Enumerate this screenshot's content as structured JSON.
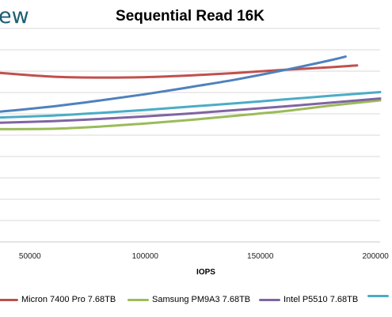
{
  "logo_text": "ew",
  "chart_data": {
    "type": "line",
    "title": "Sequential Read 16K",
    "xlabel": "IOPS",
    "ylabel": "",
    "x_ticks": [
      "50000",
      "100000",
      "150000",
      "200000"
    ],
    "x_tick_values": [
      50000,
      100000,
      150000,
      200000
    ],
    "xlim": [
      37000,
      202000
    ],
    "ylim": [
      0,
      10
    ],
    "grid": "horizontal",
    "legend_position": "bottom",
    "series": [
      {
        "name": "Micron 7400 Pro 7.68TB",
        "color": "#c0504d",
        "x": [
          37000,
          60000,
          80000,
          100000,
          120000,
          140000,
          160000,
          180000,
          192000
        ],
        "y": [
          7.92,
          7.74,
          7.7,
          7.72,
          7.8,
          7.92,
          8.06,
          8.18,
          8.27
        ]
      },
      {
        "name": "Samsung PM9A3 7.68TB",
        "color": "#9bbb59",
        "x": [
          37000,
          60000,
          80000,
          100000,
          120000,
          140000,
          160000,
          180000,
          202000
        ],
        "y": [
          5.28,
          5.3,
          5.4,
          5.55,
          5.72,
          5.92,
          6.12,
          6.38,
          6.63
        ]
      },
      {
        "name": "Intel P5510 7.68TB",
        "color": "#8064a2",
        "x": [
          37000,
          60000,
          80000,
          100000,
          120000,
          140000,
          160000,
          180000,
          202000
        ],
        "y": [
          5.58,
          5.66,
          5.76,
          5.88,
          6.02,
          6.18,
          6.34,
          6.52,
          6.72
        ]
      },
      {
        "name": "",
        "color": "#4bacc6",
        "x": [
          37000,
          60000,
          80000,
          100000,
          120000,
          140000,
          160000,
          180000,
          202000
        ],
        "y": [
          5.83,
          5.92,
          6.04,
          6.18,
          6.34,
          6.5,
          6.67,
          6.84,
          7.02
        ]
      },
      {
        "name": "",
        "color": "#4f81bd",
        "x": [
          37000,
          60000,
          80000,
          100000,
          120000,
          140000,
          160000,
          180000,
          187000
        ],
        "y": [
          6.1,
          6.35,
          6.62,
          6.92,
          7.26,
          7.62,
          8.04,
          8.5,
          8.68
        ]
      }
    ]
  }
}
